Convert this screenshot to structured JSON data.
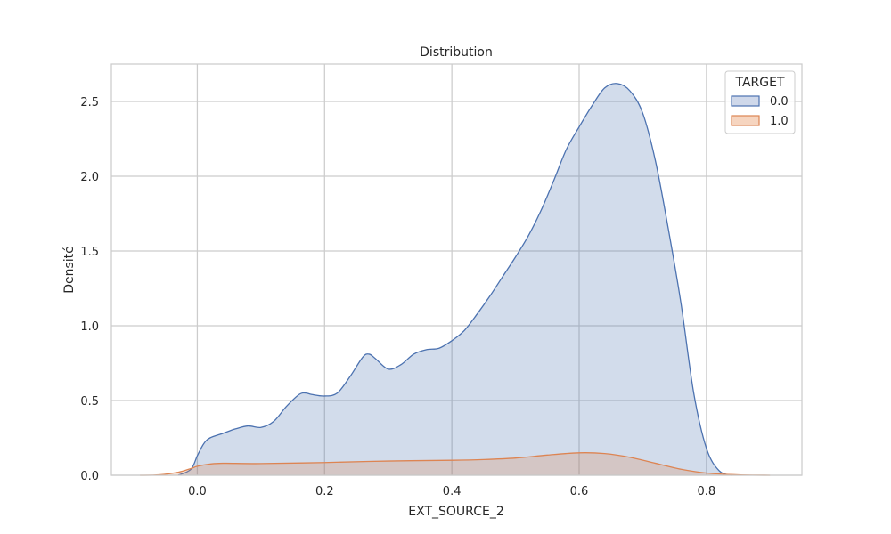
{
  "chart_data": {
    "type": "area",
    "title": "Distribution",
    "xlabel": "EXT_SOURCE_2",
    "ylabel": "Densité",
    "xlim": [
      -0.135,
      0.95
    ],
    "ylim": [
      0,
      2.75
    ],
    "xticks": [
      0.0,
      0.2,
      0.4,
      0.6,
      0.8
    ],
    "xtick_labels": [
      "0.0",
      "0.2",
      "0.4",
      "0.6",
      "0.8"
    ],
    "yticks": [
      0.0,
      0.5,
      1.0,
      1.5,
      2.0,
      2.5
    ],
    "ytick_labels": [
      "0.0",
      "0.5",
      "1.0",
      "1.5",
      "2.0",
      "2.5"
    ],
    "grid": true,
    "legend": {
      "title": "TARGET",
      "placement": "top-right"
    },
    "series": [
      {
        "name": "0.0",
        "line_color": "#4c72b0",
        "fill_color": "#cfd8ea",
        "x": [
          -0.03,
          -0.01,
          0.0,
          0.01,
          0.02,
          0.04,
          0.06,
          0.08,
          0.1,
          0.12,
          0.14,
          0.16,
          0.17,
          0.18,
          0.2,
          0.22,
          0.24,
          0.26,
          0.27,
          0.28,
          0.3,
          0.32,
          0.34,
          0.36,
          0.38,
          0.4,
          0.42,
          0.44,
          0.46,
          0.48,
          0.5,
          0.52,
          0.54,
          0.56,
          0.58,
          0.6,
          0.62,
          0.64,
          0.66,
          0.68,
          0.7,
          0.72,
          0.74,
          0.76,
          0.78,
          0.8,
          0.82,
          0.84
        ],
        "y": [
          0.0,
          0.04,
          0.13,
          0.21,
          0.25,
          0.28,
          0.31,
          0.33,
          0.32,
          0.36,
          0.46,
          0.54,
          0.55,
          0.54,
          0.53,
          0.55,
          0.66,
          0.79,
          0.81,
          0.78,
          0.71,
          0.74,
          0.81,
          0.84,
          0.85,
          0.9,
          0.97,
          1.08,
          1.2,
          1.33,
          1.46,
          1.6,
          1.77,
          1.97,
          2.18,
          2.33,
          2.47,
          2.59,
          2.62,
          2.57,
          2.42,
          2.1,
          1.65,
          1.15,
          0.55,
          0.18,
          0.03,
          0.0
        ]
      },
      {
        "name": "1.0",
        "line_color": "#dd8452",
        "fill_color": "#f6d5c0",
        "x": [
          -0.09,
          -0.06,
          -0.03,
          -0.01,
          0.0,
          0.02,
          0.04,
          0.1,
          0.2,
          0.3,
          0.4,
          0.45,
          0.5,
          0.55,
          0.6,
          0.64,
          0.68,
          0.72,
          0.76,
          0.8,
          0.85,
          0.9
        ],
        "y": [
          0.0,
          0.003,
          0.02,
          0.045,
          0.06,
          0.075,
          0.08,
          0.078,
          0.085,
          0.095,
          0.1,
          0.105,
          0.115,
          0.135,
          0.15,
          0.145,
          0.12,
          0.08,
          0.04,
          0.015,
          0.003,
          0.0
        ]
      }
    ]
  }
}
